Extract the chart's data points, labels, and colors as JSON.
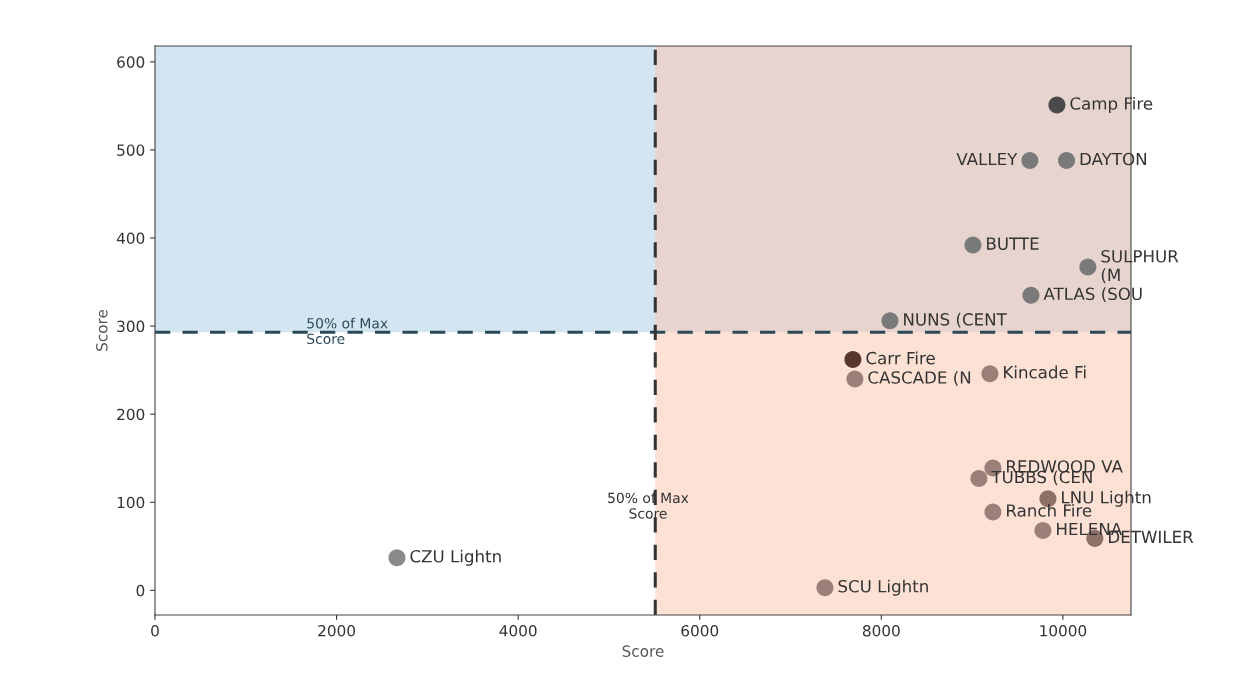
{
  "chart_data": {
    "type": "scatter",
    "xlabel": "Score",
    "ylabel": "Score",
    "xlim": [
      0,
      10750
    ],
    "ylim": [
      -28,
      618
    ],
    "xticks": [
      0,
      2000,
      4000,
      6000,
      8000,
      10000
    ],
    "yticks": [
      0,
      100,
      200,
      300,
      400,
      500,
      600
    ],
    "grid": false,
    "marker": "circle",
    "x": [
      9934,
      9636,
      10040,
      9009,
      10275,
      9648,
      8095,
      7687,
      7709,
      9196,
      9229,
      9075,
      9835,
      9229,
      9780,
      10352,
      7379,
      2665
    ],
    "values": [
      551,
      488,
      488,
      392,
      367,
      335,
      306,
      262,
      240,
      246,
      139,
      127,
      104,
      89,
      68,
      59,
      3,
      37
    ],
    "colors": [
      "#4a4a4a",
      "#7a7a7a",
      "#7a7a7a",
      "#7a7a7a",
      "#7a7a7a",
      "#7a7a7a",
      "#7a7a7a",
      "#5a3630",
      "#9a8079",
      "#9a8079",
      "#9a8079",
      "#9a8079",
      "#8e7068",
      "#9a8079",
      "#9a8079",
      "#8e7068",
      "#9a8079",
      "#8a8a8a"
    ],
    "annotations": [
      {
        "text": "Camp Fire",
        "x": 9934,
        "y": 551
      },
      {
        "text": "VALLEY",
        "x": 9636,
        "y": 488
      },
      {
        "text": "DAYTON",
        "x": 10040,
        "y": 488
      },
      {
        "text": "BUTTE",
        "x": 9009,
        "y": 392
      },
      {
        "text": "SULPHUR\n(M",
        "x": 10275,
        "y": 367
      },
      {
        "text": "ATLAS (SOU",
        "x": 9648,
        "y": 335
      },
      {
        "text": "NUNS (CENT",
        "x": 8095,
        "y": 306
      },
      {
        "text": "Carr Fire",
        "x": 7687,
        "y": 262
      },
      {
        "text": "CASCADE (N",
        "x": 7709,
        "y": 240
      },
      {
        "text": "Kincade Fi",
        "x": 9196,
        "y": 246
      },
      {
        "text": "REDWOOD VA",
        "x": 9229,
        "y": 139
      },
      {
        "text": "TUBBS (CEN",
        "x": 9075,
        "y": 127
      },
      {
        "text": "LNU Lightn",
        "x": 9835,
        "y": 104
      },
      {
        "text": "Ranch Fire",
        "x": 9229,
        "y": 89
      },
      {
        "text": "HELENA",
        "x": 9780,
        "y": 68
      },
      {
        "text": "DETWILER",
        "x": 10352,
        "y": 59
      },
      {
        "text": "SCU Lightn",
        "x": 7379,
        "y": 3
      },
      {
        "text": "CZU Lightn",
        "x": 2665,
        "y": 37
      }
    ],
    "bands": [
      {
        "axis": "y",
        "from": 293,
        "to": 618,
        "color": "#a5cbe1"
      },
      {
        "axis": "x",
        "from": 5510,
        "to": 10750,
        "color": "#fbc3ab"
      }
    ],
    "ref_lines": [
      {
        "axis": "y",
        "value": 293,
        "label": "50% of Max\nScore",
        "color": "#2a4a5a",
        "line_style": "dashed"
      },
      {
        "axis": "x",
        "value": 5510,
        "label": "50% of Max\nScore",
        "color": "#333333",
        "line_style": "dashed"
      }
    ]
  }
}
